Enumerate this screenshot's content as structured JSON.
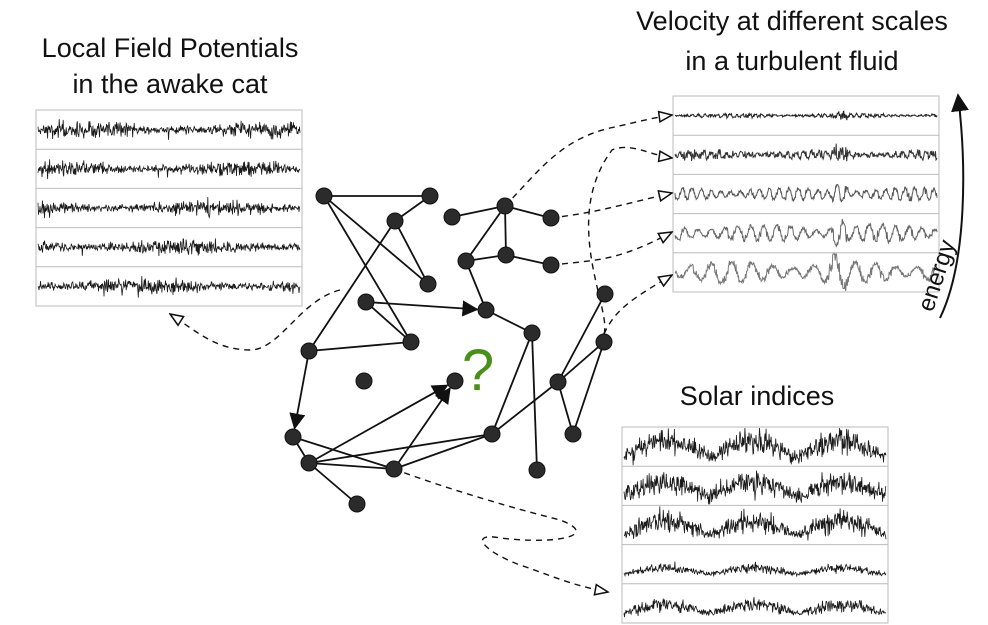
{
  "titles": {
    "lfp_line1": "Local Field Potentials",
    "lfp_line2": "in the awake cat",
    "turb_line1": "Velocity at different scales",
    "turb_line2": "in a turbulent fluid",
    "solar": "Solar indices",
    "energy": "energy",
    "question": "?"
  },
  "colors": {
    "ink": "#111111",
    "node": "#2b2b2b",
    "question": "#4a8f1a",
    "panel_border": "#bbbbbb"
  }
}
